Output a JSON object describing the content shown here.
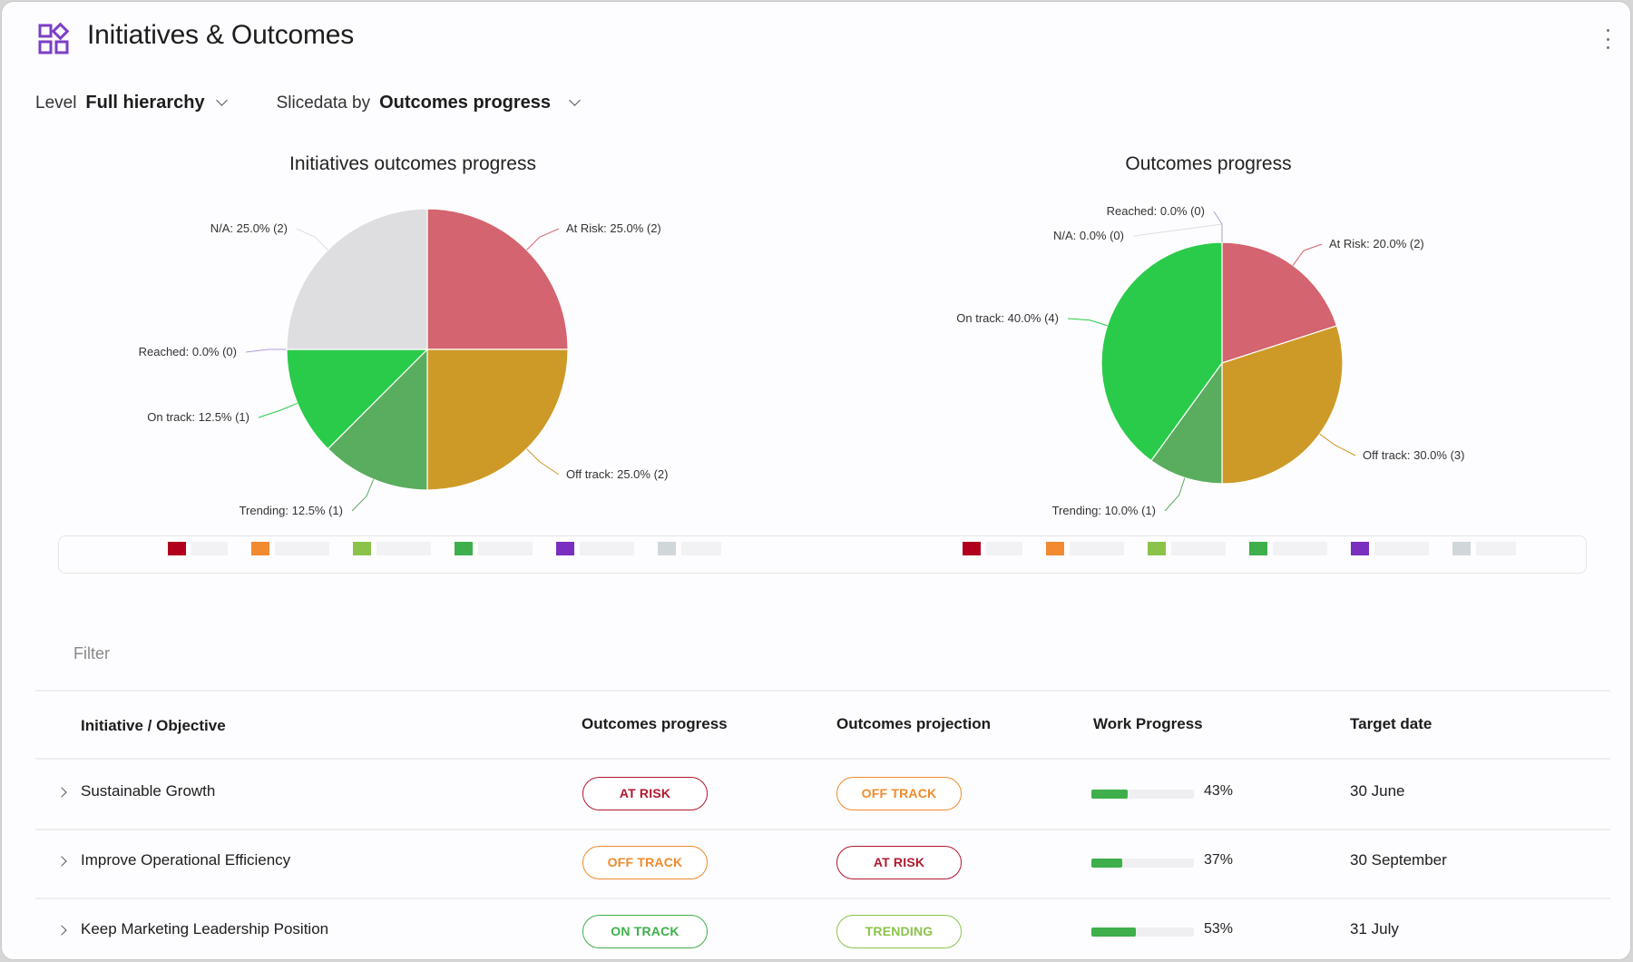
{
  "header": {
    "title": "Initiatives & Outcomes",
    "icon": "widgets-icon",
    "menu_icon": "kebab-menu-icon"
  },
  "filters": {
    "level_label": "Level",
    "level_value": "Full hierarchy",
    "slice_label": "Slicedata by",
    "slice_value": "Outcomes progress"
  },
  "colors": {
    "at_risk": "#d4646f",
    "off_track": "#cd9a27",
    "trending": "#5aad5e",
    "on_track": "#2acb4a",
    "reached": "#b39ddb",
    "na": "#dedde0",
    "pill_at_risk": "#b0182f",
    "pill_off_track": "#f08a2c",
    "pill_on_track": "#3eaf4a",
    "pill_trending": "#8bc34a",
    "progress_fill": "#3eaf4a"
  },
  "chart_data": [
    {
      "type": "pie",
      "title": "Initiatives outcomes progress",
      "slices": [
        {
          "name": "At Risk",
          "percent": 25.0,
          "count": 2,
          "label": "At Risk:  25.0% (2)"
        },
        {
          "name": "Off track",
          "percent": 25.0,
          "count": 2,
          "label": "Off track:  25.0% (2)"
        },
        {
          "name": "Trending",
          "percent": 12.5,
          "count": 1,
          "label": "Trending:  12.5% (1)"
        },
        {
          "name": "On track",
          "percent": 12.5,
          "count": 1,
          "label": "On track:  12.5% (1)"
        },
        {
          "name": "Reached",
          "percent": 0.0,
          "count": 0,
          "label": "Reached:  0.0% (0)"
        },
        {
          "name": "N/A",
          "percent": 25.0,
          "count": 2,
          "label": "N/A:  25.0% (2)"
        }
      ],
      "legend": [
        "#b0001e",
        "#f28a30",
        "#8bc34a",
        "#3eaf4a",
        "#7b2fbe",
        "#d0d7da"
      ]
    },
    {
      "type": "pie",
      "title": "Outcomes progress",
      "slices": [
        {
          "name": "At Risk",
          "percent": 20.0,
          "count": 2,
          "label": "At Risk:  20.0% (2)"
        },
        {
          "name": "Off track",
          "percent": 30.0,
          "count": 3,
          "label": "Off track:  30.0% (3)"
        },
        {
          "name": "Trending",
          "percent": 10.0,
          "count": 1,
          "label": "Trending:  10.0% (1)"
        },
        {
          "name": "On track",
          "percent": 40.0,
          "count": 4,
          "label": "On track:  40.0% (4)"
        },
        {
          "name": "N/A",
          "percent": 0.0,
          "count": 0,
          "label": "N/A:  0.0% (0)"
        },
        {
          "name": "Reached",
          "percent": 0.0,
          "count": 0,
          "label": "Reached:  0.0% (0)"
        }
      ],
      "legend": [
        "#b0001e",
        "#f28a30",
        "#8bc34a",
        "#3eaf4a",
        "#7b2fbe",
        "#d0d7da"
      ]
    }
  ],
  "filter": {
    "placeholder": "Filter"
  },
  "table": {
    "columns": [
      "Initiative / Objective",
      "Outcomes progress",
      "Outcomes projection",
      "Work Progress",
      "Target date"
    ],
    "rows": [
      {
        "name": "Sustainable Growth",
        "progress": "AT RISK",
        "progress_status": "at_risk",
        "projection": "OFF TRACK",
        "projection_status": "off_track",
        "work_progress": 43,
        "work_progress_label": "43%",
        "target_date": "30 June"
      },
      {
        "name": "Improve Operational Efficiency",
        "progress": "OFF TRACK",
        "progress_status": "off_track",
        "projection": "AT RISK",
        "projection_status": "at_risk",
        "work_progress": 37,
        "work_progress_label": "37%",
        "target_date": "30 September"
      },
      {
        "name": "Keep Marketing Leadership Position",
        "progress": "ON TRACK",
        "progress_status": "on_track",
        "projection": "TRENDING",
        "projection_status": "trending",
        "work_progress": 53,
        "work_progress_label": "53%",
        "target_date": "31 July"
      }
    ]
  }
}
